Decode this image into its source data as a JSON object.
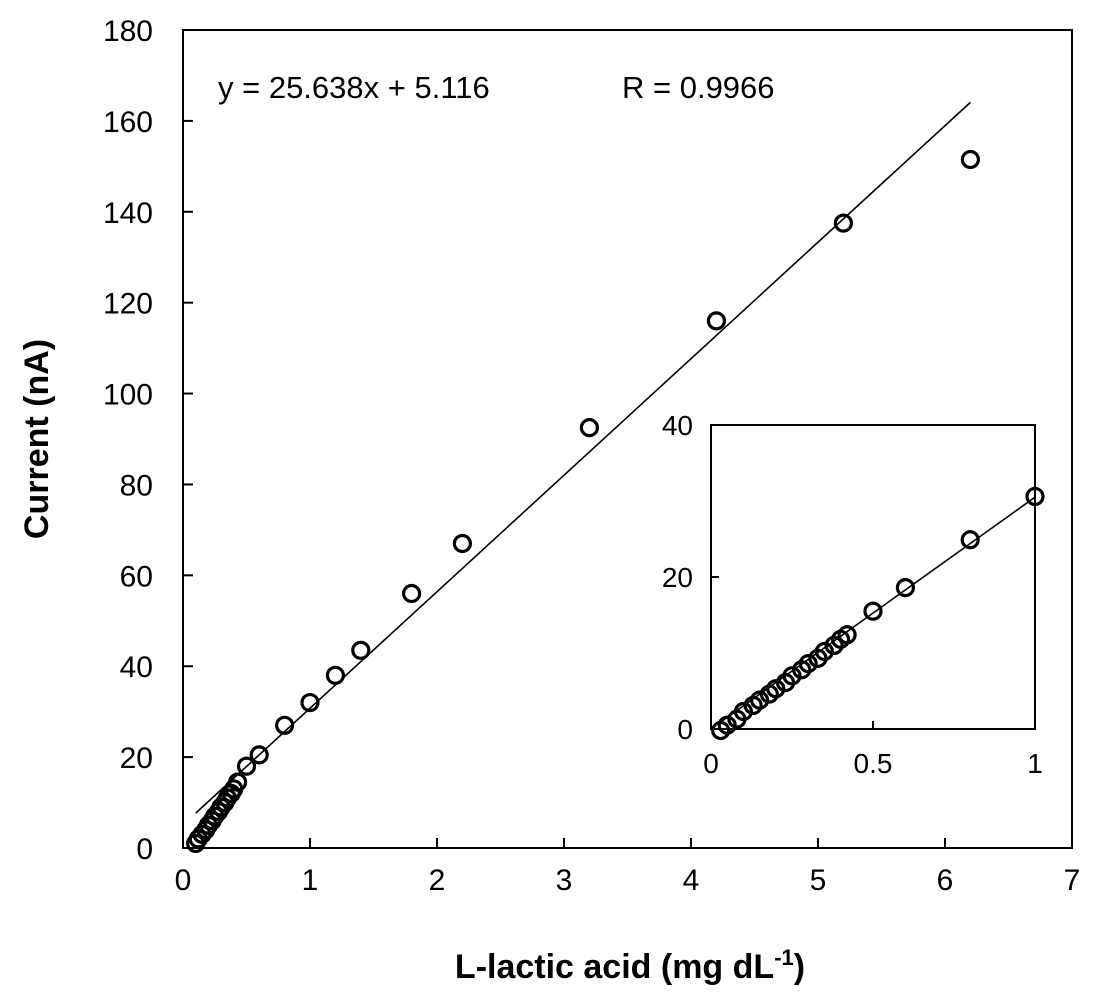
{
  "chart_data": [
    {
      "type": "scatter",
      "title": "",
      "xlabel": "L-lactic acid (mg dL",
      "xlabel_superscript": "-1",
      "xlabel_suffix": ")",
      "ylabel": "Current (nA)",
      "xlim": [
        0,
        7
      ],
      "ylim": [
        0,
        180
      ],
      "xticks": [
        0,
        1,
        2,
        3,
        4,
        5,
        6,
        7
      ],
      "yticks": [
        0,
        20,
        40,
        60,
        80,
        100,
        120,
        140,
        160,
        180
      ],
      "grid": false,
      "legend": "none",
      "marker": "open-circle",
      "annotations": {
        "equation": "y = 25.638x + 5.116",
        "r_value": "R = 0.9966"
      },
      "fit_line": {
        "slope": 25.638,
        "intercept": 5.116,
        "x_range": [
          0.1,
          6.2
        ]
      },
      "series": [
        {
          "x": [
            0.1,
            0.12,
            0.15,
            0.18,
            0.2,
            0.23,
            0.25,
            0.28,
            0.3,
            0.33,
            0.35,
            0.38,
            0.4,
            0.43,
            0.5,
            0.6,
            0.8,
            1.0,
            1.2,
            1.4,
            1.8,
            2.2,
            3.2,
            4.2,
            5.2,
            6.2
          ],
          "y": [
            1,
            2,
            3,
            4,
            5,
            6,
            7,
            8,
            9,
            10,
            11,
            12,
            13,
            14.5,
            18,
            20.5,
            27,
            32,
            38,
            43.5,
            56,
            67,
            92.5,
            116,
            137.5,
            151.5
          ]
        }
      ]
    },
    {
      "type": "scatter",
      "title": "",
      "xlabel": "",
      "ylabel": "",
      "xlim": [
        0,
        1
      ],
      "ylim": [
        0,
        40
      ],
      "xticks": [
        0,
        0.5,
        1
      ],
      "xtick_labels": [
        "0",
        "0.5",
        "1"
      ],
      "yticks": [
        0,
        20,
        40
      ],
      "grid": false,
      "legend": "none",
      "placement": "inset lower-right",
      "marker": "open-circle",
      "fit_line": {
        "slope": 30.5,
        "intercept": 0.0,
        "x_range": [
          0.03,
          1.0
        ]
      },
      "series": [
        {
          "x": [
            0.03,
            0.05,
            0.08,
            0.1,
            0.13,
            0.15,
            0.18,
            0.2,
            0.23,
            0.25,
            0.28,
            0.3,
            0.33,
            0.35,
            0.38,
            0.4,
            0.42,
            0.5,
            0.6,
            0.8,
            1.0
          ],
          "y": [
            -0.2,
            0.5,
            1.3,
            2.3,
            3.1,
            3.8,
            4.6,
            5.3,
            6.1,
            7.0,
            7.8,
            8.6,
            9.3,
            10.2,
            11.0,
            11.8,
            12.4,
            15.5,
            18.6,
            24.9,
            30.6
          ]
        }
      ]
    }
  ]
}
